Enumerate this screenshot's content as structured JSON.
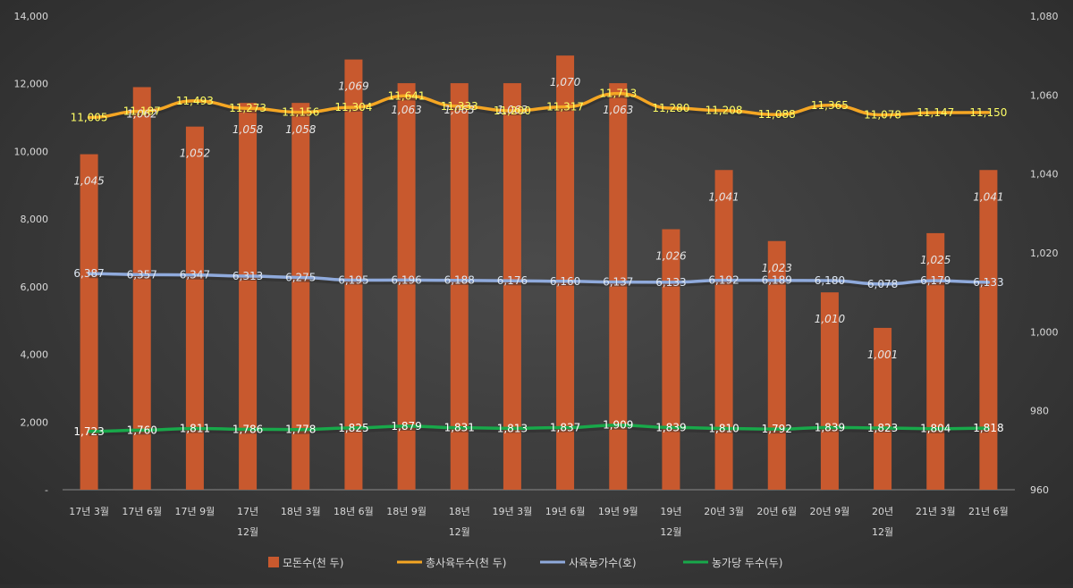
{
  "chart_data": {
    "type": "bar",
    "categories": [
      [
        "17년 3월"
      ],
      [
        "17년 6월"
      ],
      [
        "17년 9월"
      ],
      [
        "17년",
        "12월"
      ],
      [
        "18년 3월"
      ],
      [
        "18년 6월"
      ],
      [
        "18년 9월"
      ],
      [
        "18년",
        "12월"
      ],
      [
        "19년 3월"
      ],
      [
        "19년 6월"
      ],
      [
        "19년 9월"
      ],
      [
        "19년",
        "12월"
      ],
      [
        "20년 3월"
      ],
      [
        "20년 6월"
      ],
      [
        "20년 9월"
      ],
      [
        "20년",
        "12월"
      ],
      [
        "21년 3월"
      ],
      [
        "21년 6월"
      ]
    ],
    "left_axis": {
      "ylim": [
        0,
        14000
      ],
      "ticks": [
        "-",
        "2,000",
        "4,000",
        "6,000",
        "8,000",
        "10,000",
        "12,000",
        "14,000"
      ]
    },
    "right_axis": {
      "ylim": [
        960,
        1080
      ],
      "ticks": [
        "960",
        "980",
        "1,000",
        "1,020",
        "1,040",
        "1,060",
        "1,080"
      ]
    },
    "series": [
      {
        "name": "모돈수(천 두)",
        "type": "bar",
        "axis": "right",
        "color": "#c8592e",
        "values": [
          1045,
          1062,
          1052,
          1058,
          1058,
          1069,
          1063,
          1063,
          1063,
          1070,
          1063,
          1026,
          1041,
          1023,
          1010,
          1001,
          1025,
          1041
        ]
      },
      {
        "name": "총사육두수(천 두)",
        "type": "line",
        "axis": "left",
        "color": "#f5a623",
        "label_color": "#ffff66",
        "values": [
          11005,
          11187,
          11493,
          11273,
          11156,
          11304,
          11641,
          11333,
          11200,
          11317,
          11713,
          11280,
          11208,
          11088,
          11365,
          11078,
          11147,
          11150
        ]
      },
      {
        "name": "사육농가수(호)",
        "type": "line",
        "axis": "left",
        "color": "#8faadc",
        "label_color": "#dde6f2",
        "values": [
          6387,
          6357,
          6347,
          6313,
          6275,
          6195,
          6196,
          6188,
          6176,
          6160,
          6137,
          6133,
          6192,
          6189,
          6180,
          6078,
          6179,
          6133
        ]
      },
      {
        "name": "농가당 두수(두)",
        "type": "line",
        "axis": "left",
        "color": "#18a84a",
        "label_color": "#ffffff",
        "values": [
          1723,
          1760,
          1811,
          1786,
          1778,
          1825,
          1879,
          1831,
          1813,
          1837,
          1909,
          1839,
          1810,
          1792,
          1839,
          1823,
          1804,
          1818
        ]
      }
    ],
    "legend_position": "bottom",
    "grid": false
  }
}
